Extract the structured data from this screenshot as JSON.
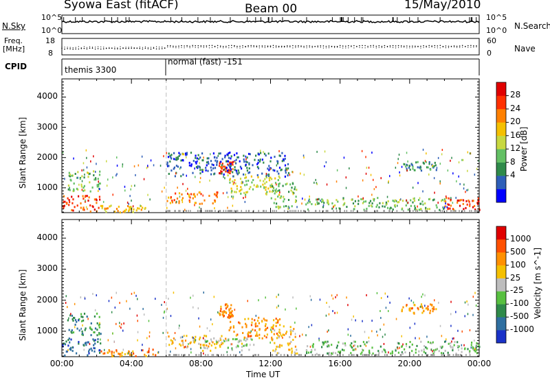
{
  "header": {
    "station": "Syowa East (fitACF)",
    "beam": "Beam 00",
    "date": "15/May/2010"
  },
  "noise_panel": {
    "left_label": "N.Sky",
    "left_ticks": [
      "10^5",
      "10^0"
    ],
    "right_label": "N.Search",
    "right_ticks": [
      "10^5",
      "10^0"
    ]
  },
  "freq_panel": {
    "left_label_1": "Freq.",
    "left_label_2": "[MHz]",
    "left_ticks": [
      "18",
      "8"
    ],
    "right_label": "Nave",
    "right_ticks": [
      "60",
      "0"
    ]
  },
  "cpid_panel": {
    "label": "CPID",
    "segments": [
      "themis 3300",
      "normal (fast) -151"
    ]
  },
  "colors": {
    "power": [
      "#0000ff",
      "#2e5fb8",
      "#2f8a4a",
      "#63c064",
      "#c8d840",
      "#f5c000",
      "#ff8000",
      "#ff3000",
      "#e00000"
    ],
    "velocity": [
      "#1a32c8",
      "#2f6fa0",
      "#2f8a4a",
      "#58c040",
      "#bdbdbd",
      "#f5c000",
      "#ff9000",
      "#ff5000",
      "#e00000"
    ]
  },
  "chart_data": [
    {
      "type": "heatmap",
      "title": "Power",
      "ylabel": "Slant Range [km]",
      "xlabel": "Time UT",
      "x_ticks": [
        "00:00",
        "04:00",
        "08:00",
        "12:00",
        "16:00",
        "20:00",
        "00:00"
      ],
      "y_ticks": [
        "1000",
        "2000",
        "3000",
        "4000"
      ],
      "ylim": [
        180,
        4600
      ],
      "xlim": [
        0,
        24
      ],
      "colorbar_label": "Power [dB]",
      "colorbar_ticks": [
        "28",
        "24",
        "20",
        "16",
        "12",
        "8",
        "4"
      ],
      "regions": [
        {
          "t0": 0.0,
          "t1": 2.2,
          "r0": 250,
          "r1": 800,
          "level": 7
        },
        {
          "t0": 0.3,
          "t1": 2.2,
          "r0": 900,
          "r1": 1600,
          "level": 3
        },
        {
          "t0": 2.2,
          "t1": 5.0,
          "r0": 220,
          "r1": 450,
          "level": 5
        },
        {
          "t0": 6.0,
          "t1": 9.0,
          "r0": 500,
          "r1": 900,
          "level": 6
        },
        {
          "t0": 9.0,
          "t1": 9.8,
          "r0": 1500,
          "r1": 1900,
          "level": 7
        },
        {
          "t0": 9.5,
          "t1": 12.5,
          "r0": 800,
          "r1": 1500,
          "level": 4
        },
        {
          "t0": 12.0,
          "t1": 13.5,
          "r0": 300,
          "r1": 1200,
          "level": 3
        },
        {
          "t0": 14.0,
          "t1": 22.0,
          "r0": 300,
          "r1": 700,
          "level": 3
        },
        {
          "t0": 19.5,
          "t1": 21.5,
          "r0": 1600,
          "r1": 1900,
          "level": 2
        },
        {
          "t0": 22.0,
          "t1": 24.0,
          "r0": 300,
          "r1": 700,
          "level": 7
        },
        {
          "t0": 6.0,
          "t1": 13.0,
          "r0": 1400,
          "r1": 2200,
          "level": 1
        }
      ]
    },
    {
      "type": "heatmap",
      "title": "Velocity",
      "ylabel": "Slant Range [km]",
      "xlabel": "Time UT",
      "x_ticks": [
        "00:00",
        "04:00",
        "08:00",
        "12:00",
        "16:00",
        "20:00",
        "00:00"
      ],
      "y_ticks": [
        "1000",
        "2000",
        "3000",
        "4000"
      ],
      "ylim": [
        180,
        4600
      ],
      "xlim": [
        0,
        24
      ],
      "colorbar_label": "Velocity [m s^-1]",
      "colorbar_ticks": [
        "1000",
        "500",
        "100",
        "25",
        "-25",
        "-100",
        "-500",
        "-1000"
      ],
      "regions": [
        {
          "t0": 0.0,
          "t1": 2.2,
          "r0": 250,
          "r1": 800,
          "level": 1
        },
        {
          "t0": 0.3,
          "t1": 2.2,
          "r0": 900,
          "r1": 1600,
          "level": 2
        },
        {
          "t0": 2.2,
          "t1": 5.5,
          "r0": 220,
          "r1": 450,
          "level": 6
        },
        {
          "t0": 6.0,
          "t1": 9.5,
          "r0": 500,
          "r1": 900,
          "level": 5
        },
        {
          "t0": 8.0,
          "t1": 11.0,
          "r0": 400,
          "r1": 800,
          "level": 4
        },
        {
          "t0": 9.0,
          "t1": 9.8,
          "r0": 1500,
          "r1": 1900,
          "level": 6
        },
        {
          "t0": 9.5,
          "t1": 12.5,
          "r0": 800,
          "r1": 1500,
          "level": 6
        },
        {
          "t0": 12.0,
          "t1": 13.5,
          "r0": 300,
          "r1": 1200,
          "level": 5
        },
        {
          "t0": 14.0,
          "t1": 22.0,
          "r0": 300,
          "r1": 700,
          "level": 3
        },
        {
          "t0": 19.5,
          "t1": 21.5,
          "r0": 1600,
          "r1": 1900,
          "level": 6
        },
        {
          "t0": 22.0,
          "t1": 24.0,
          "r0": 300,
          "r1": 700,
          "level": 3
        }
      ]
    }
  ]
}
